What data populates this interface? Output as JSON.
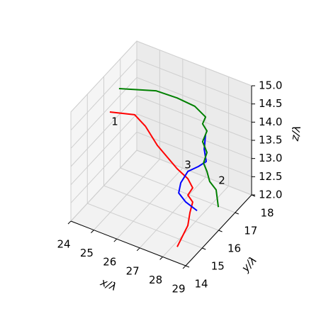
{
  "chart_data": {
    "type": "line3d",
    "xlabel": "x/λ",
    "ylabel": "y/λ",
    "zlabel": "z/λ",
    "xlim": [
      24,
      29
    ],
    "ylim": [
      14,
      18
    ],
    "zlim": [
      12,
      15
    ],
    "xticks": [
      24,
      25,
      26,
      27,
      28,
      29
    ],
    "yticks": [
      14,
      15,
      16,
      17,
      18
    ],
    "zticks": [
      {
        "value": 12,
        "label": "12.0"
      },
      {
        "value": 12.5,
        "label": "12.5"
      },
      {
        "value": 13,
        "label": "13.0"
      },
      {
        "value": 13.5,
        "label": "13.5"
      },
      {
        "value": 14,
        "label": "14.0"
      },
      {
        "value": 14.5,
        "label": "14.5"
      },
      {
        "value": 15,
        "label": "15.0"
      }
    ],
    "grid": true,
    "series": [
      {
        "color": "#ff0000",
        "x": [
          24.26,
          25.34,
          25.81,
          26.33,
          27.19,
          27.66,
          27.87,
          27.66,
          27.87,
          27.75,
          28.52,
          28.63
        ],
        "y": [
          16,
          16,
          16,
          16,
          16,
          16,
          16,
          16,
          16,
          16,
          14.8,
          14
        ],
        "z": [
          14.09,
          14.28,
          14.08,
          13.68,
          13.25,
          13.09,
          12.89,
          12.64,
          12.5,
          12.18,
          12.6,
          12.43
        ]
      },
      {
        "color": "#0000ff",
        "x": [
          28.43,
          28.37,
          28.46,
          28.12,
          27.66,
          27.35,
          27.26,
          27.56,
          28.06
        ],
        "y": [
          16,
          16,
          16,
          16,
          16,
          16,
          16,
          16,
          16
        ],
        "z": [
          14.49,
          14.08,
          13.76,
          13.54,
          13.29,
          12.9,
          12.6,
          12.43,
          12.31
        ]
      },
      {
        "color": "#008000",
        "x": [
          24.66,
          25.41,
          26.33,
          27.1,
          27.57,
          27.44,
          27.63,
          27.44,
          27.63,
          27.48,
          27.63,
          27.75,
          28.03,
          28.7
        ],
        "y": [
          16,
          17.2,
          17.2,
          17.2,
          17.2,
          17.2,
          17.2,
          17.2,
          17.2,
          17.2,
          17.2,
          17.2,
          17.2,
          16.4
        ],
        "z": [
          14.83,
          14.37,
          14.4,
          14.36,
          14.18,
          13.96,
          13.81,
          13.47,
          13.22,
          12.89,
          12.7,
          12.45,
          12.29,
          12.37
        ]
      }
    ],
    "annotations": [
      {
        "text": "1",
        "x": 24.48,
        "y": 16,
        "z": 13.87
      },
      {
        "text": "2",
        "x": 28.28,
        "y": 17.2,
        "z": 12.6
      },
      {
        "text": "3",
        "x": 27.66,
        "y": 16,
        "z": 13.46
      }
    ]
  }
}
